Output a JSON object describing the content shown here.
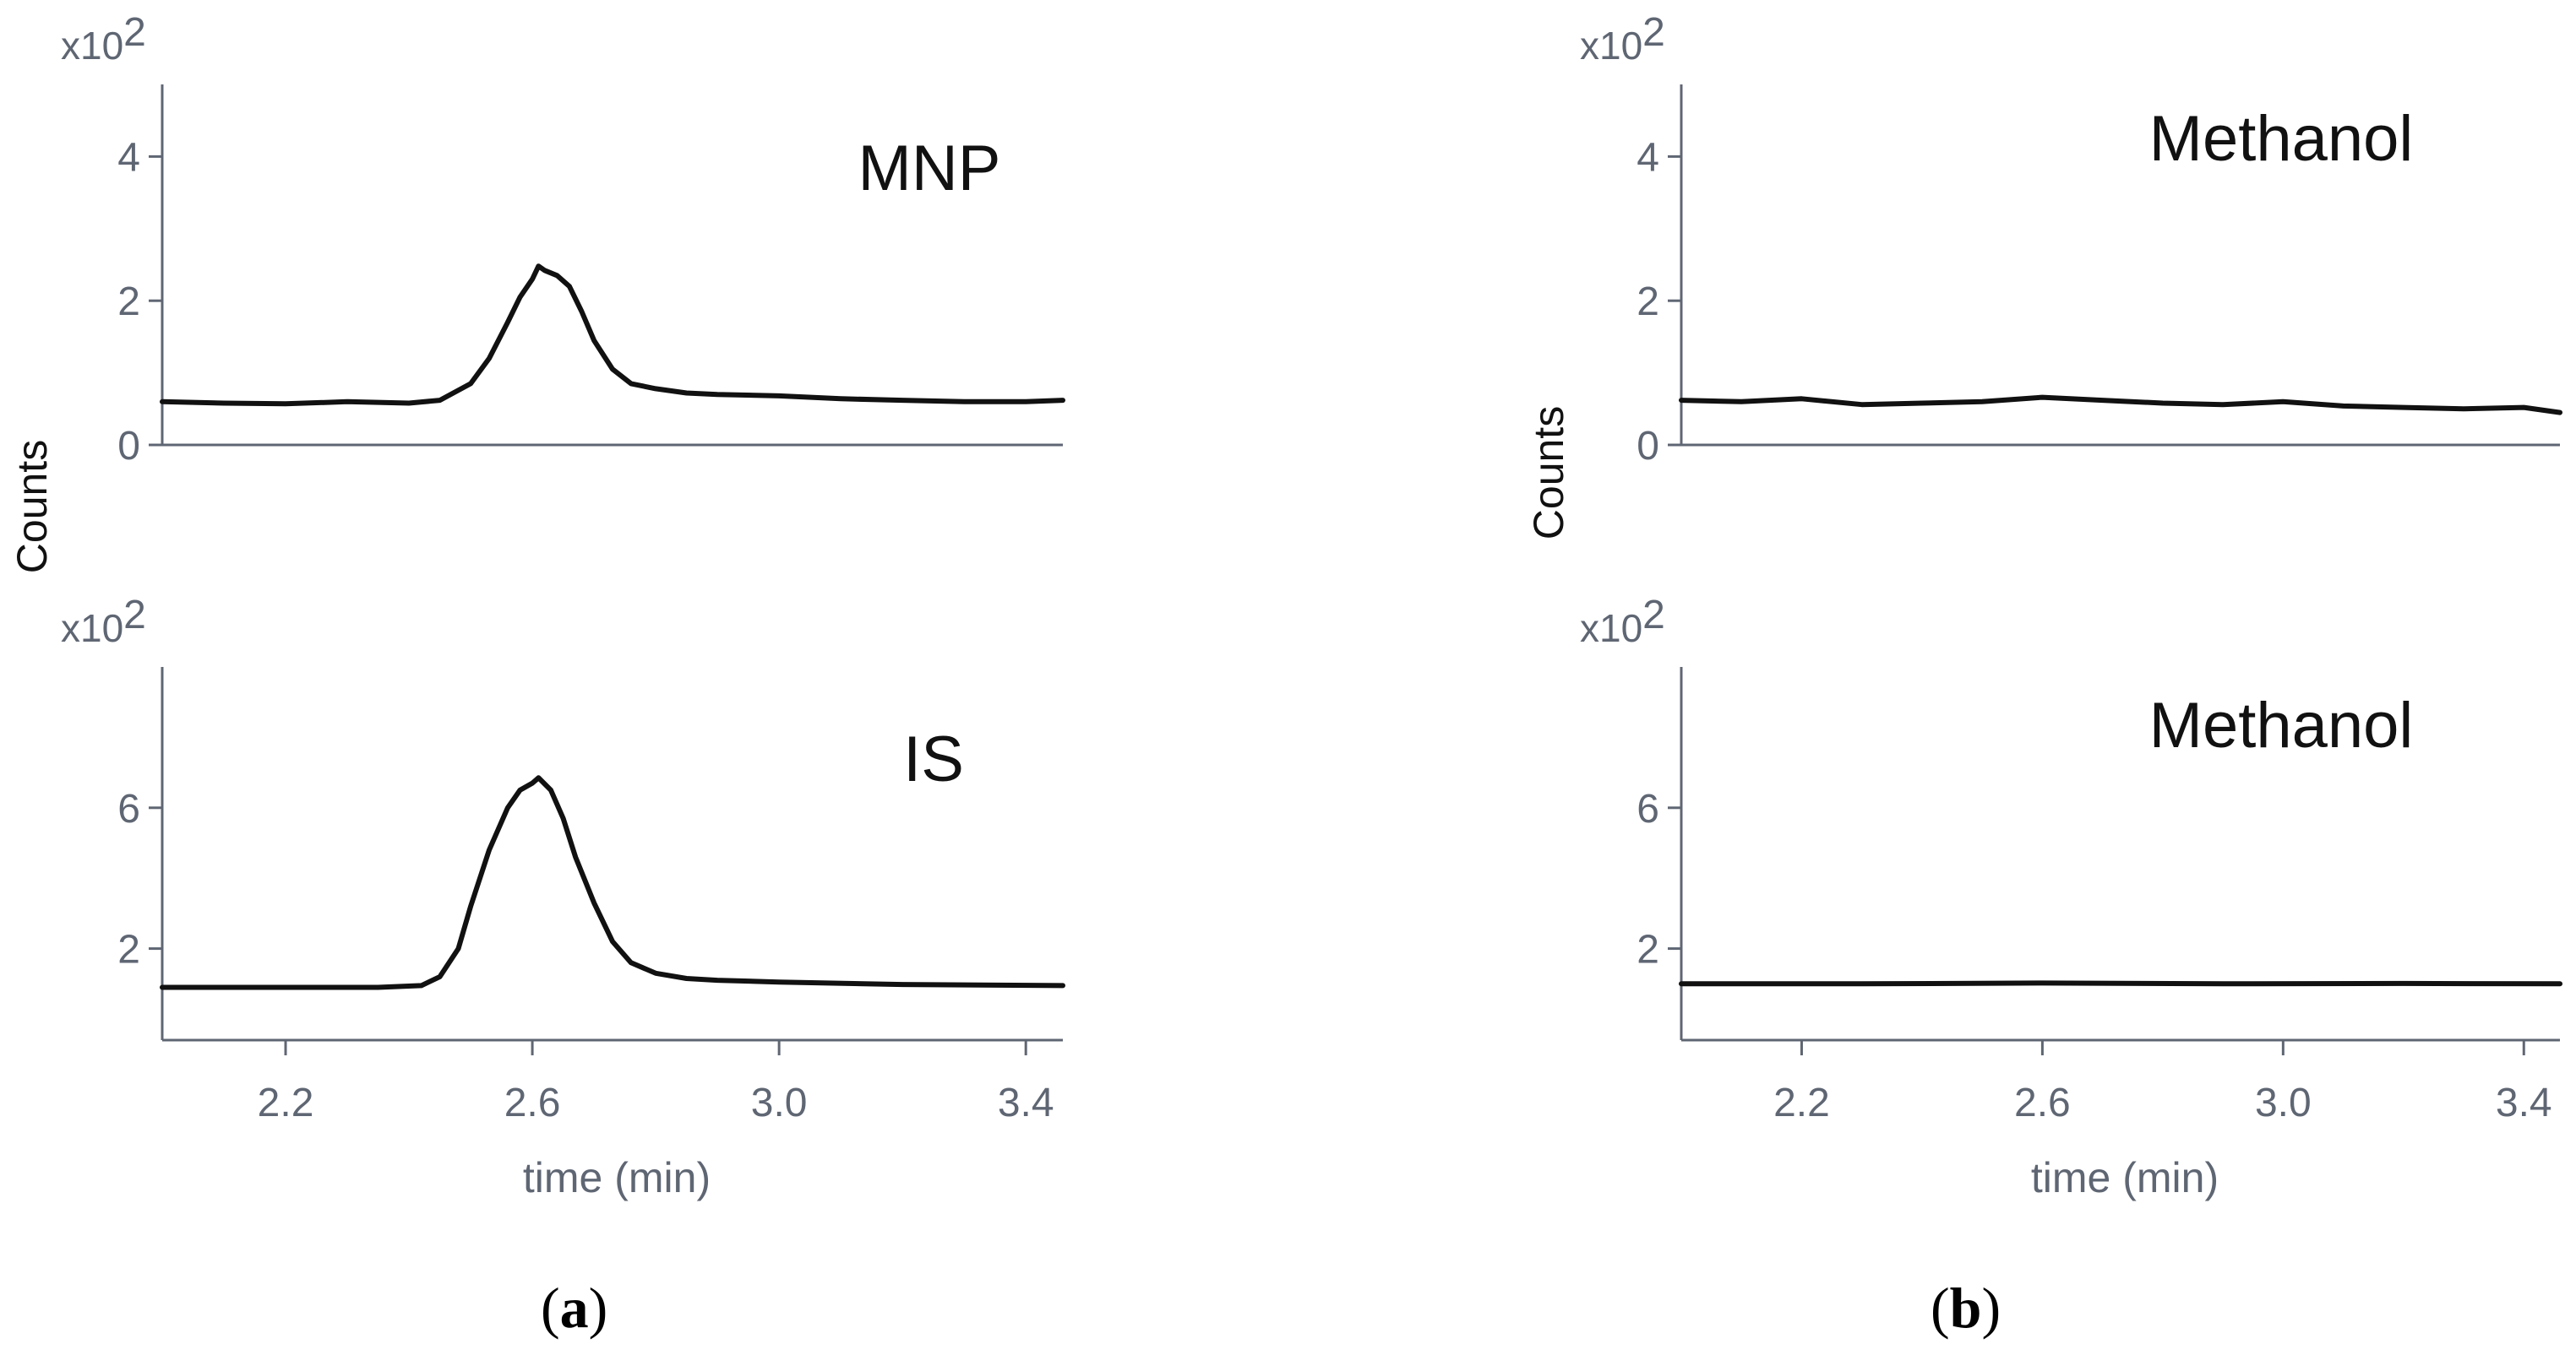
{
  "panel_labels": {
    "a": {
      "open": "(",
      "letter": "a",
      "close": ")"
    },
    "b": {
      "open": "(",
      "letter": "b",
      "close": ")"
    }
  },
  "colors": {
    "axis": "#5f6673",
    "trace": "#111111",
    "text": "#111111"
  },
  "chart_data": [
    {
      "id": "a-top",
      "type": "line",
      "panel": "a",
      "title": "MNP",
      "ylabel": "Counts",
      "xlabel": "",
      "multiplier": "x10",
      "multiplier_exp": "2",
      "xlim": [
        2.0,
        3.46
      ],
      "ylim": [
        0,
        5
      ],
      "yticks": [
        0,
        2,
        4
      ],
      "yticklabels": [
        "0",
        "2",
        "4"
      ],
      "xticks": [],
      "xticklabels": [],
      "x": [
        2.0,
        2.1,
        2.2,
        2.3,
        2.4,
        2.45,
        2.5,
        2.53,
        2.56,
        2.58,
        2.6,
        2.61,
        2.62,
        2.64,
        2.66,
        2.68,
        2.7,
        2.73,
        2.76,
        2.8,
        2.85,
        2.9,
        3.0,
        3.1,
        3.2,
        3.3,
        3.4,
        3.46
      ],
      "y": [
        0.6,
        0.58,
        0.57,
        0.6,
        0.58,
        0.62,
        0.85,
        1.2,
        1.7,
        2.05,
        2.3,
        2.48,
        2.42,
        2.35,
        2.2,
        1.85,
        1.45,
        1.05,
        0.85,
        0.78,
        0.72,
        0.7,
        0.68,
        0.64,
        0.62,
        0.6,
        0.6,
        0.62
      ]
    },
    {
      "id": "a-bottom",
      "type": "line",
      "panel": "a",
      "title": "IS",
      "ylabel": "",
      "xlabel": "time (min)",
      "multiplier": "x10",
      "multiplier_exp": "2",
      "xlim": [
        2.0,
        3.46
      ],
      "ylim": [
        -0.6,
        10
      ],
      "yticks": [
        2,
        6
      ],
      "yticklabels": [
        "2",
        "6"
      ],
      "xticks": [
        2.2,
        2.6,
        3.0,
        3.4
      ],
      "xticklabels": [
        "2.2",
        "2.6",
        "3.0",
        "3.4"
      ],
      "x": [
        2.0,
        2.2,
        2.35,
        2.42,
        2.45,
        2.48,
        2.5,
        2.53,
        2.56,
        2.58,
        2.6,
        2.61,
        2.63,
        2.65,
        2.67,
        2.7,
        2.73,
        2.76,
        2.8,
        2.85,
        2.9,
        3.0,
        3.2,
        3.46
      ],
      "y": [
        0.9,
        0.9,
        0.9,
        0.95,
        1.2,
        2.0,
        3.2,
        4.8,
        6.0,
        6.5,
        6.7,
        6.85,
        6.5,
        5.7,
        4.6,
        3.3,
        2.2,
        1.6,
        1.3,
        1.15,
        1.1,
        1.05,
        0.98,
        0.95
      ]
    },
    {
      "id": "b-top",
      "type": "line",
      "panel": "b",
      "title": "Methanol",
      "ylabel": "Counts",
      "xlabel": "",
      "multiplier": "x10",
      "multiplier_exp": "2",
      "xlim": [
        2.0,
        3.46
      ],
      "ylim": [
        0,
        5
      ],
      "yticks": [
        0,
        2,
        4
      ],
      "yticklabels": [
        "0",
        "2",
        "4"
      ],
      "xticks": [],
      "xticklabels": [],
      "x": [
        2.0,
        2.1,
        2.2,
        2.3,
        2.4,
        2.5,
        2.6,
        2.7,
        2.8,
        2.9,
        3.0,
        3.1,
        3.2,
        3.3,
        3.4,
        3.46
      ],
      "y": [
        0.62,
        0.6,
        0.64,
        0.56,
        0.58,
        0.6,
        0.66,
        0.62,
        0.58,
        0.56,
        0.6,
        0.54,
        0.52,
        0.5,
        0.52,
        0.45
      ]
    },
    {
      "id": "b-bottom",
      "type": "line",
      "panel": "b",
      "title": "Methanol",
      "ylabel": "",
      "xlabel": "time (min)",
      "multiplier": "x10",
      "multiplier_exp": "2",
      "xlim": [
        2.0,
        3.46
      ],
      "ylim": [
        -0.6,
        10
      ],
      "yticks": [
        2,
        6
      ],
      "yticklabels": [
        "2",
        "6"
      ],
      "xticks": [
        2.2,
        2.6,
        3.0,
        3.4
      ],
      "xticklabels": [
        "2.2",
        "2.6",
        "3.0",
        "3.4"
      ],
      "x": [
        2.0,
        2.3,
        2.6,
        2.9,
        3.2,
        3.46
      ],
      "y": [
        1.0,
        1.0,
        1.02,
        1.0,
        1.01,
        1.0
      ]
    }
  ]
}
